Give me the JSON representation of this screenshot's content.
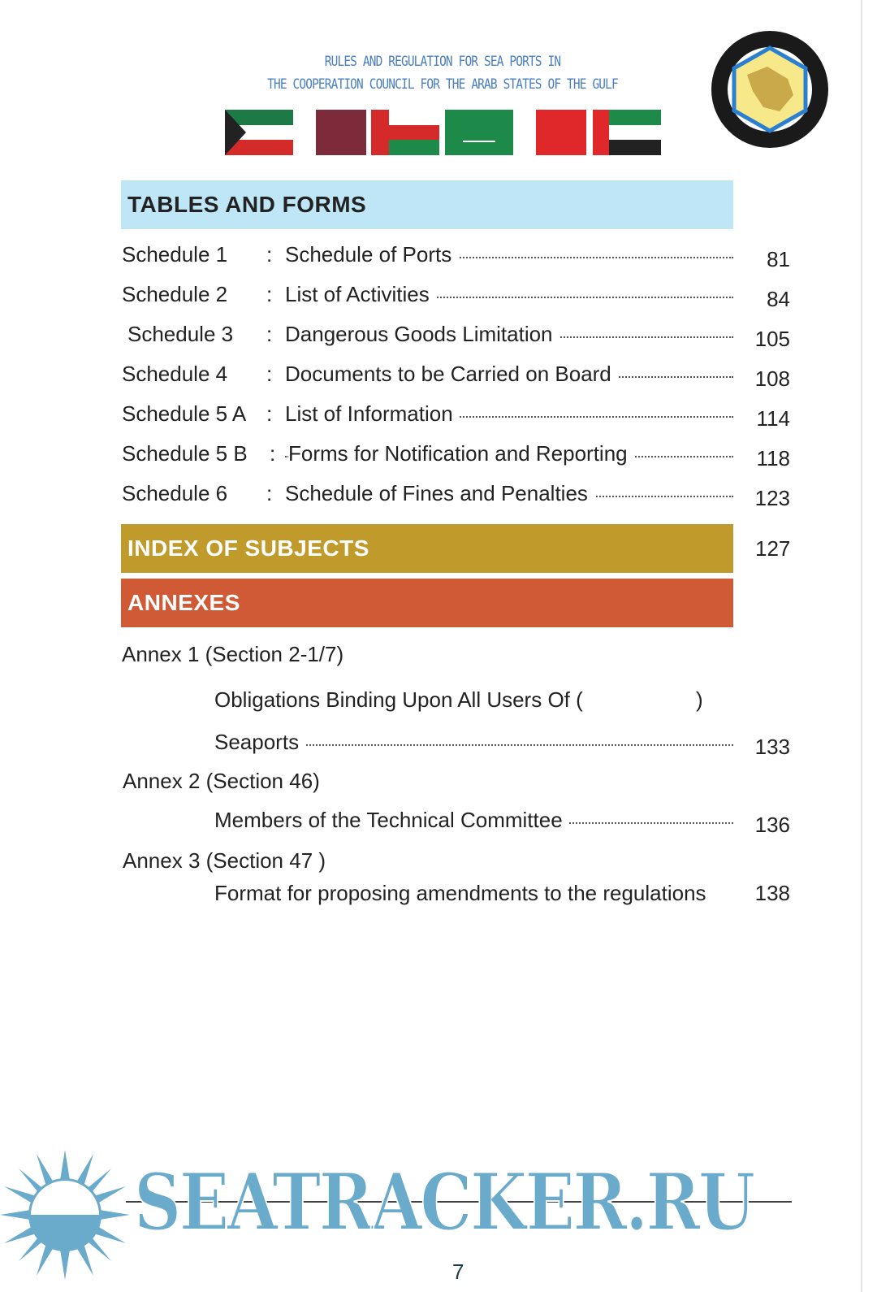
{
  "header": {
    "title_line1": "RULES AND REGULATION FOR SEA PORTS IN",
    "title_line2": "THE COOPERATION COUNCIL FOR THE ARAB STATES OF THE GULF",
    "flags": [
      "kuwait-flag",
      "qatar-flag",
      "oman-flag",
      "saudi-arabia-flag",
      "bahrain-flag",
      "uae-flag"
    ],
    "emblem": "gcc-emblem"
  },
  "tables_and_forms": {
    "heading": "TABLES AND FORMS",
    "color": "#bfe6f7",
    "items": [
      {
        "label": "Schedule 1",
        "title": "Schedule of Ports",
        "page": "81"
      },
      {
        "label": "Schedule 2",
        "title": "List of Activities",
        "page": "84"
      },
      {
        "label": "Schedule 3",
        "title": "Dangerous Goods Limitation",
        "page": "105"
      },
      {
        "label": "Schedule 4",
        "title": "Documents to be Carried on Board",
        "page": "108"
      },
      {
        "label": "Schedule 5 A",
        "title": "List of Information",
        "page": "114"
      },
      {
        "label": "Schedule 5 B",
        "title": "Forms for Notification and Reporting",
        "page": "118"
      },
      {
        "label": "Schedule 6",
        "title": "Schedule of Fines and Penalties",
        "page": "123"
      }
    ],
    "separator": ":"
  },
  "index": {
    "heading": "INDEX OF SUBJECTS",
    "page": "127",
    "color": "#c09a2a"
  },
  "annexes": {
    "heading": "ANNEXES",
    "color": "#d05a35",
    "items": [
      {
        "label": "Annex 1 (Section 2-1/7)",
        "line1": "Obligations Binding Upon All Users Of (",
        "line1_close": ")",
        "line2": "Seaports",
        "page": "133"
      },
      {
        "label": "Annex 2 (Section 46)",
        "line1": "Members of the Technical Committee",
        "page": "136"
      },
      {
        "label": "Annex 3 (Section 47 )",
        "line1": "Format for proposing amendments to the regulations",
        "page": "138"
      }
    ]
  },
  "footer": {
    "page_number": "7"
  },
  "watermark": {
    "text": "SEATRACKER.RU",
    "color": "#6aaacb"
  }
}
